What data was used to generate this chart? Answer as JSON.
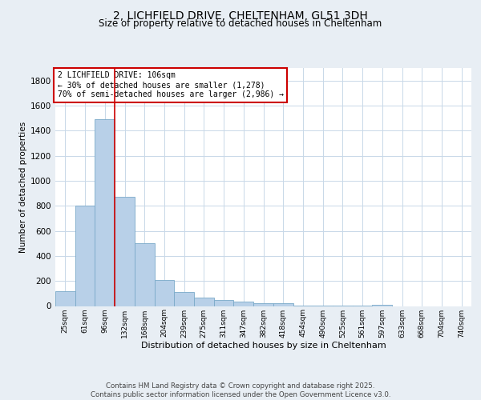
{
  "title_line1": "2, LICHFIELD DRIVE, CHELTENHAM, GL51 3DH",
  "title_line2": "Size of property relative to detached houses in Cheltenham",
  "xlabel": "Distribution of detached houses by size in Cheltenham",
  "ylabel": "Number of detached properties",
  "categories": [
    "25sqm",
    "61sqm",
    "96sqm",
    "132sqm",
    "168sqm",
    "204sqm",
    "239sqm",
    "275sqm",
    "311sqm",
    "347sqm",
    "382sqm",
    "418sqm",
    "454sqm",
    "490sqm",
    "525sqm",
    "561sqm",
    "597sqm",
    "633sqm",
    "668sqm",
    "704sqm",
    "740sqm"
  ],
  "values": [
    120,
    800,
    1490,
    870,
    500,
    210,
    110,
    65,
    50,
    33,
    25,
    20,
    5,
    5,
    5,
    5,
    10,
    0,
    0,
    0,
    0
  ],
  "bar_color": "#b8d0e8",
  "bar_edge_color": "#7aaac8",
  "vline_color": "#cc0000",
  "annotation_text": "2 LICHFIELD DRIVE: 106sqm\n← 30% of detached houses are smaller (1,278)\n70% of semi-detached houses are larger (2,986) →",
  "annotation_box_color": "#ffffff",
  "annotation_box_edge": "#cc0000",
  "ylim": [
    0,
    1900
  ],
  "yticks": [
    0,
    200,
    400,
    600,
    800,
    1000,
    1200,
    1400,
    1600,
    1800
  ],
  "footer": "Contains HM Land Registry data © Crown copyright and database right 2025.\nContains public sector information licensed under the Open Government Licence v3.0.",
  "background_color": "#e8eef4",
  "plot_bg_color": "#ffffff",
  "grid_color": "#c8d8e8"
}
